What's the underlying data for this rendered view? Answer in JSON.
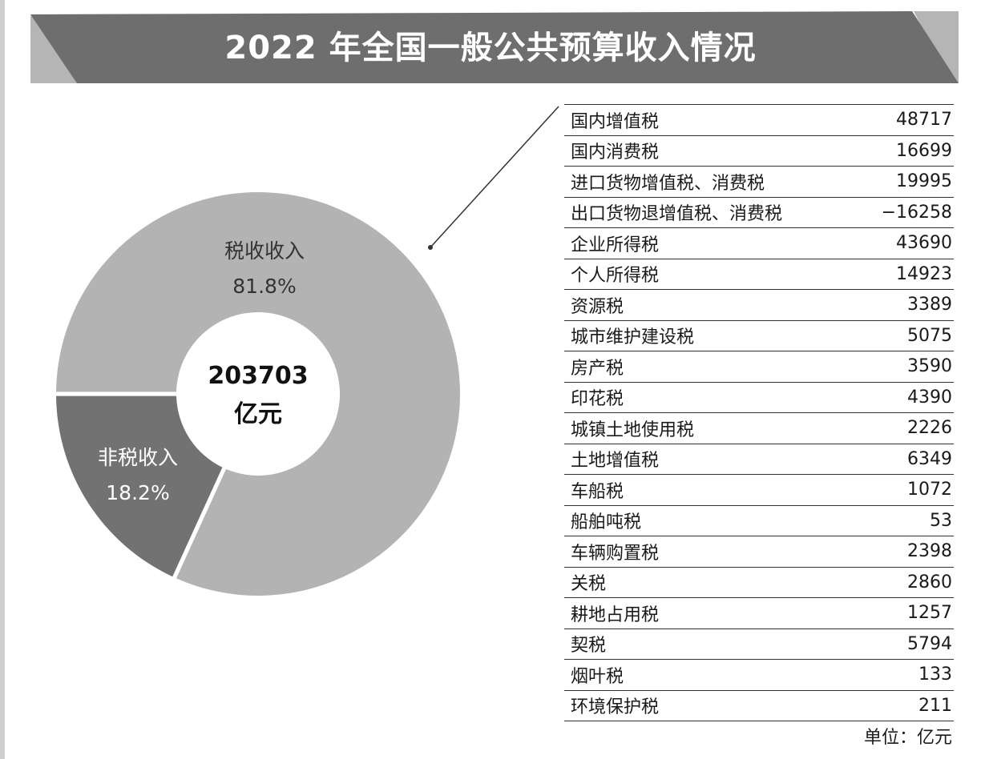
{
  "chart_data": [
    {
      "type": "pie",
      "title": "2022 年全国一般公共预算收入情况",
      "total": "203703",
      "total_unit": "亿元",
      "slices": [
        {
          "label": "税收收入",
          "percent_text": "81.8%",
          "value": 81.8,
          "color": "#b3b3b3"
        },
        {
          "label": "非税收入",
          "percent_text": "18.2%",
          "value": 18.2,
          "color": "#727272"
        }
      ]
    },
    {
      "type": "table",
      "unit_note": "单位：亿元",
      "rows": [
        {
          "name": "国内增值税",
          "value": "48717"
        },
        {
          "name": "国内消费税",
          "value": "16699"
        },
        {
          "name": "进口货物增值税、消费税",
          "value": "19995"
        },
        {
          "name": "出口货物退增值税、消费税",
          "value": "−16258"
        },
        {
          "name": "企业所得税",
          "value": "43690"
        },
        {
          "name": "个人所得税",
          "value": "14923"
        },
        {
          "name": "资源税",
          "value": "3389"
        },
        {
          "name": "城市维护建设税",
          "value": "5075"
        },
        {
          "name": "房产税",
          "value": "3590"
        },
        {
          "name": "印花税",
          "value": "4390"
        },
        {
          "name": "城镇土地使用税",
          "value": "2226"
        },
        {
          "name": "土地增值税",
          "value": "6349"
        },
        {
          "name": "车船税",
          "value": "1072"
        },
        {
          "name": "船舶吨税",
          "value": "53"
        },
        {
          "name": "车辆购置税",
          "value": "2398"
        },
        {
          "name": "关税",
          "value": "2860"
        },
        {
          "name": "耕地占用税",
          "value": "1257"
        },
        {
          "name": "契税",
          "value": "5794"
        },
        {
          "name": "烟叶税",
          "value": "133"
        },
        {
          "name": "环境保护税",
          "value": "211"
        }
      ]
    }
  ],
  "colors": {
    "banner": "#6e6e6e",
    "banner_edge": "#b5b5b5"
  }
}
